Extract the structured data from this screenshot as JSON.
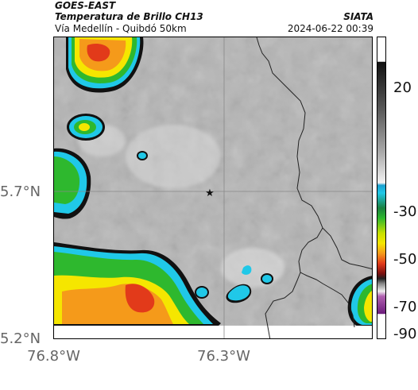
{
  "header": {
    "satellite": "GOES-EAST",
    "product": "Temperatura de Brillo CH13",
    "route": "Vía Medellín - Quibdó 50km",
    "agency": "SIATA",
    "datetime": "2024-06-22 00:39"
  },
  "axes": {
    "lat_ticks": [
      "5.7°N",
      "5.2°N"
    ],
    "lon_ticks": [
      "76.8°W",
      "76.3°W"
    ]
  },
  "colorbar": {
    "ticks": [
      "20",
      "-30",
      "-50",
      "-70",
      "-90"
    ]
  },
  "map": {
    "marker_symbol": "★",
    "colors": {
      "background_gray": "#b5b5b5",
      "border_line": "#222222",
      "cloud_cyan": "#20c8e8",
      "cloud_green": "#2eb82e",
      "cloud_yellow": "#f5e600",
      "cloud_orange": "#f59a1a",
      "cloud_red": "#e23a1a"
    }
  }
}
